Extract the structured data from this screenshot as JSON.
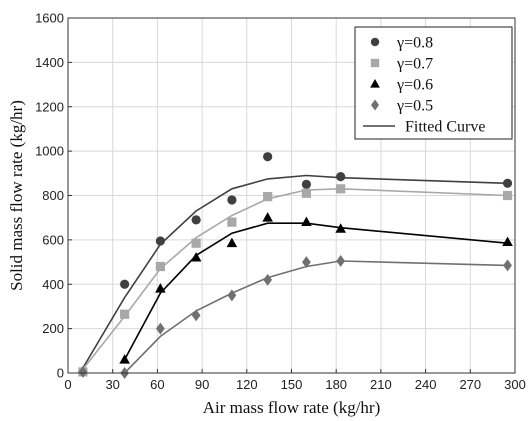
{
  "chart_data": {
    "type": "scatter",
    "xlabel": "Air mass flow rate (kg/hr)",
    "ylabel": "Solid mass flow rate (kg/hr)",
    "xlim": [
      0,
      300
    ],
    "ylim": [
      0,
      1600
    ],
    "xticks": [
      0,
      30,
      60,
      90,
      120,
      150,
      180,
      210,
      240,
      270,
      300
    ],
    "yticks": [
      0,
      200,
      400,
      600,
      800,
      1000,
      1200,
      1400,
      1600
    ],
    "grid": true,
    "legend_position": "top-right",
    "series": [
      {
        "name": "γ=0.8",
        "marker": "circle",
        "color": "#404040",
        "points": [
          [
            10,
            5
          ],
          [
            38,
            400
          ],
          [
            62,
            595
          ],
          [
            86,
            690
          ],
          [
            110,
            780
          ],
          [
            134,
            975
          ],
          [
            160,
            850
          ],
          [
            183,
            885
          ],
          [
            295,
            855
          ]
        ],
        "fit": [
          [
            8,
            0
          ],
          [
            38,
            340
          ],
          [
            62,
            580
          ],
          [
            86,
            730
          ],
          [
            110,
            830
          ],
          [
            134,
            875
          ],
          [
            160,
            890
          ],
          [
            183,
            880
          ],
          [
            295,
            855
          ]
        ]
      },
      {
        "name": "γ=0.7",
        "marker": "square",
        "color": "#a8a8a8",
        "points": [
          [
            10,
            5
          ],
          [
            38,
            265
          ],
          [
            62,
            480
          ],
          [
            86,
            585
          ],
          [
            110,
            680
          ],
          [
            134,
            795
          ],
          [
            160,
            810
          ],
          [
            183,
            830
          ],
          [
            295,
            800
          ]
        ],
        "fit": [
          [
            8,
            0
          ],
          [
            38,
            255
          ],
          [
            62,
            470
          ],
          [
            86,
            610
          ],
          [
            110,
            710
          ],
          [
            134,
            785
          ],
          [
            160,
            825
          ],
          [
            183,
            830
          ],
          [
            295,
            800
          ]
        ]
      },
      {
        "name": "γ=0.6",
        "marker": "triangle",
        "color": "#000000",
        "points": [
          [
            38,
            60
          ],
          [
            62,
            380
          ],
          [
            86,
            520
          ],
          [
            110,
            585
          ],
          [
            134,
            700
          ],
          [
            160,
            680
          ],
          [
            183,
            650
          ],
          [
            295,
            590
          ]
        ],
        "fit": [
          [
            38,
            60
          ],
          [
            62,
            360
          ],
          [
            86,
            530
          ],
          [
            110,
            630
          ],
          [
            134,
            675
          ],
          [
            160,
            675
          ],
          [
            183,
            655
          ],
          [
            295,
            585
          ]
        ]
      },
      {
        "name": "γ=0.5",
        "marker": "diamond",
        "color": "#707070",
        "points": [
          [
            10,
            5
          ],
          [
            38,
            0
          ],
          [
            62,
            200
          ],
          [
            86,
            260
          ],
          [
            110,
            350
          ],
          [
            134,
            420
          ],
          [
            160,
            500
          ],
          [
            183,
            505
          ],
          [
            295,
            485
          ]
        ],
        "fit": [
          [
            38,
            0
          ],
          [
            62,
            165
          ],
          [
            86,
            280
          ],
          [
            110,
            360
          ],
          [
            134,
            430
          ],
          [
            160,
            480
          ],
          [
            183,
            505
          ],
          [
            295,
            485
          ]
        ]
      }
    ],
    "fit_legend_label": "Fitted Curve"
  }
}
